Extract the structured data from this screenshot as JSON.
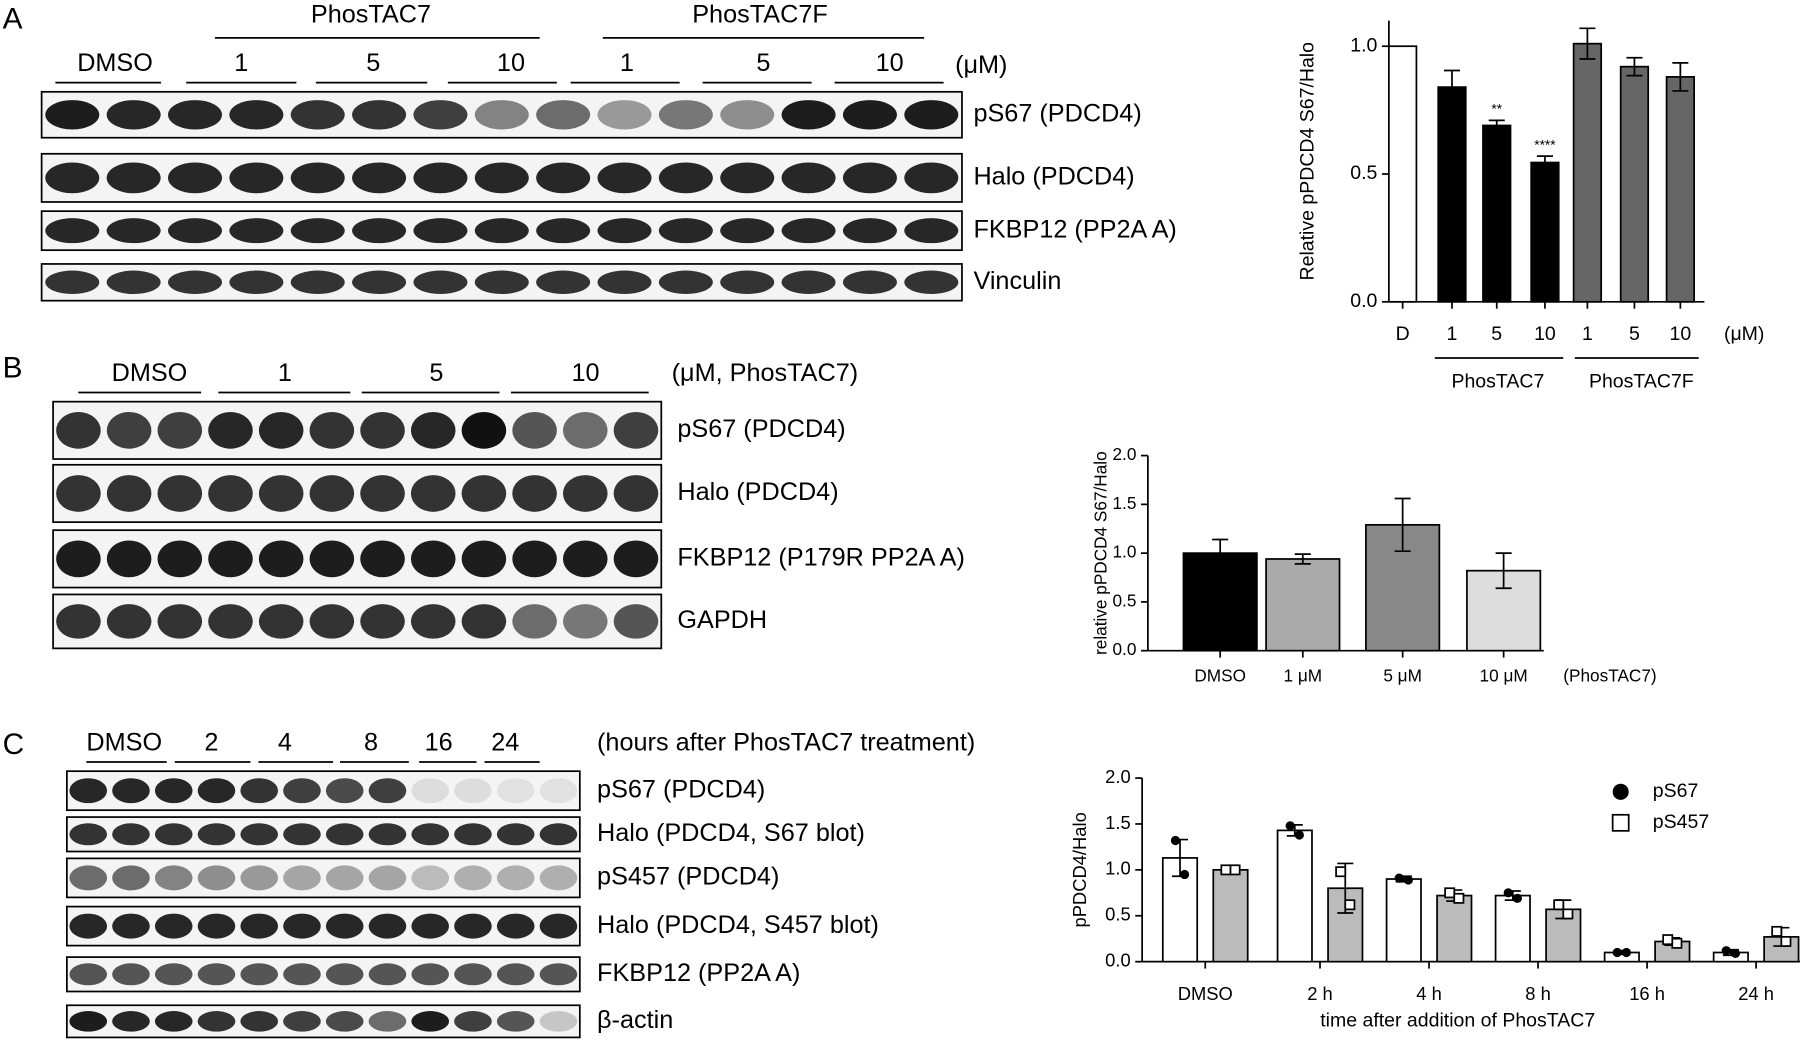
{
  "blots": [
    {
      "letter": "A",
      "top_groups": [
        "PhosTAC7",
        "PhosTAC7F"
      ],
      "lane_groups": [
        "DMSO",
        "1",
        "5",
        "10",
        "1",
        "5",
        "10"
      ],
      "unit": "(μM)",
      "rows": [
        "pS67 (PDCD4)",
        "Halo (PDCD4)",
        "FKBP12 (PP2A A)",
        "Vinculin"
      ]
    },
    {
      "letter": "B",
      "lane_groups": [
        "DMSO",
        "1",
        "5",
        "10"
      ],
      "unit": "(μM, PhosTAC7)",
      "rows": [
        "pS67 (PDCD4)",
        "Halo (PDCD4)",
        "FKBP12 (P179R PP2A A)",
        "GAPDH"
      ]
    },
    {
      "letter": "C",
      "lane_groups": [
        "DMSO",
        "2",
        "4",
        "8",
        "16",
        "24"
      ],
      "unit": "(hours after PhosTAC7 treatment)",
      "rows": [
        "pS67 (PDCD4)",
        "Halo (PDCD4, S67 blot)",
        "pS457 (PDCD4)",
        "Halo (PDCD4, S457 blot)",
        "FKBP12 (PP2A A)",
        "β-actin"
      ]
    }
  ],
  "chart_data": [
    {
      "type": "bar",
      "categories": [
        "D",
        "1",
        "5",
        "10",
        "1",
        "5",
        "10"
      ],
      "values": [
        1.0,
        0.84,
        0.69,
        0.545,
        1.01,
        0.92,
        0.88
      ],
      "errors": [
        null,
        0.065,
        0.02,
        0.025,
        0.06,
        0.035,
        0.055
      ],
      "colors": [
        "#ffffff",
        "#000000",
        "#000000",
        "#000000",
        "#666666",
        "#666666",
        "#666666"
      ],
      "significance": [
        null,
        null,
        "**",
        "****",
        null,
        null,
        null
      ],
      "groups": [
        "PhosTAC7",
        "PhosTAC7F"
      ],
      "unit": "(μM)",
      "ylabel": "Relative pPDCD4 S67/Halo",
      "ylim": [
        0,
        1.1
      ],
      "yticks": [
        {
          "value": 0,
          "label": "0.0"
        },
        {
          "value": 0.5,
          "label": "0.5"
        },
        {
          "value": 1,
          "label": "1.0"
        }
      ]
    },
    {
      "type": "bar",
      "categories": [
        "DMSO",
        "1 μM",
        "5 μM",
        "10 μM"
      ],
      "values": [
        1.0,
        0.94,
        1.29,
        0.82
      ],
      "errors": [
        0.14,
        0.05,
        0.27,
        0.18
      ],
      "colors": [
        "#000000",
        "#aaaaaa",
        "#888888",
        "#dddddd"
      ],
      "unit": "(PhosTAC7)",
      "ylabel": "relative pPDCD4 S67/Halo",
      "ylim": [
        0,
        2
      ],
      "yticks": [
        {
          "value": 0,
          "label": "0.0"
        },
        {
          "value": 0.5,
          "label": "0.5"
        },
        {
          "value": 1,
          "label": "1.0"
        },
        {
          "value": 1.5,
          "label": "1.5"
        },
        {
          "value": 2,
          "label": "2.0"
        }
      ]
    },
    {
      "type": "bar",
      "categories": [
        "DMSO",
        "2 h",
        "4 h",
        "8 h",
        "16 h",
        "24 h"
      ],
      "series": [
        {
          "name": "pS67",
          "color": "#ffffff",
          "marker": "circle",
          "values": [
            1.13,
            1.43,
            0.9,
            0.72,
            0.1,
            0.1
          ],
          "errors": [
            0.2,
            0.06,
            0.03,
            0.05,
            0.02,
            0.03
          ],
          "points": [
            [
              1.32,
              0.95
            ],
            [
              1.48,
              1.38
            ],
            [
              0.91,
              0.89
            ],
            [
              0.75,
              0.69
            ],
            [
              0.1,
              0.1
            ],
            [
              0.12,
              0.09
            ]
          ]
        },
        {
          "name": "pS457",
          "color": "#bbbbbb",
          "marker": "square",
          "values": [
            1.0,
            0.8,
            0.72,
            0.57,
            0.22,
            0.27
          ],
          "errors": [
            0.02,
            0.27,
            0.06,
            0.1,
            0.04,
            0.1
          ],
          "points": [
            [
              1.0,
              1.0
            ],
            [
              0.98,
              0.62
            ],
            [
              0.75,
              0.69
            ],
            [
              0.62,
              0.52
            ],
            [
              0.24,
              0.2
            ],
            [
              0.33,
              0.22
            ]
          ]
        }
      ],
      "xlabel": "time after addition of PhosTAC7",
      "ylabel": "pPDCD4/Halo",
      "ylim": [
        0,
        2
      ],
      "yticks": [
        {
          "value": 0,
          "label": "0.0"
        },
        {
          "value": 0.5,
          "label": "0.5"
        },
        {
          "value": 1,
          "label": "1.0"
        },
        {
          "value": 1.5,
          "label": "1.5"
        },
        {
          "value": 2,
          "label": "2.0"
        }
      ]
    }
  ]
}
